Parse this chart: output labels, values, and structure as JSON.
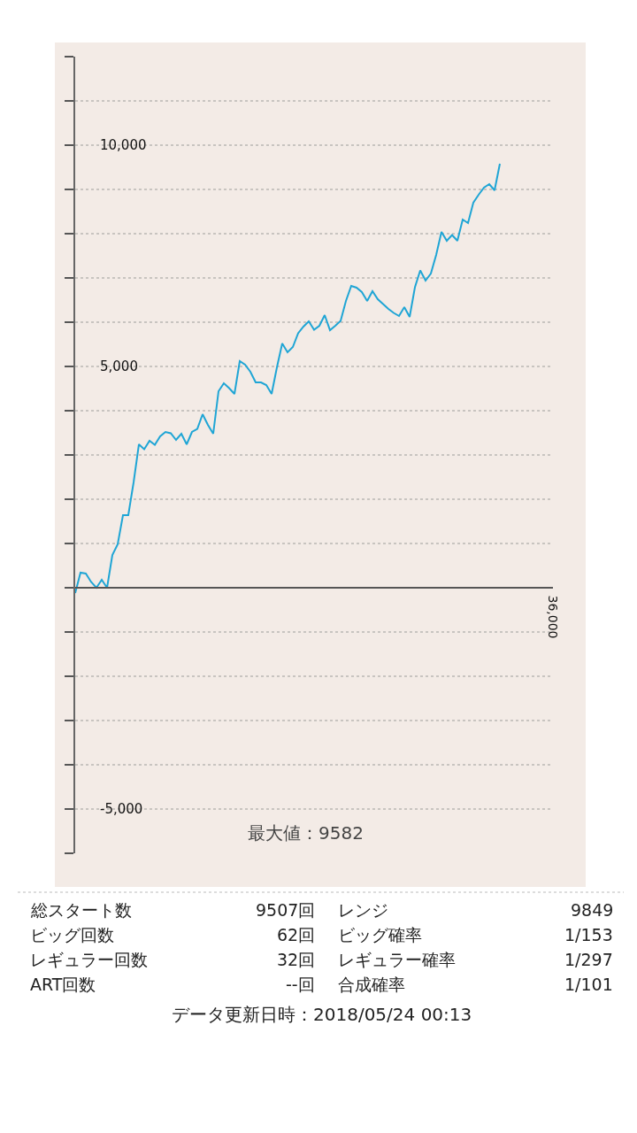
{
  "chart_data": {
    "type": "line",
    "categories": [
      null,
      null,
      null,
      null,
      null,
      null,
      null,
      null,
      null,
      null,
      null,
      null,
      null,
      null,
      null,
      null,
      null,
      null,
      null,
      null,
      null,
      null,
      null,
      null,
      null,
      null,
      null,
      null,
      null,
      null,
      null,
      null,
      null,
      null,
      null,
      null,
      null,
      null,
      null,
      null,
      null,
      null,
      null,
      null,
      null,
      null,
      null,
      null,
      null,
      null,
      null,
      null,
      null,
      null,
      null,
      null,
      null,
      null,
      null,
      null,
      null,
      null,
      null,
      null,
      null,
      null,
      null,
      null,
      null,
      null,
      null,
      null,
      null,
      null,
      null,
      null,
      null,
      null,
      null,
      null,
      null,
      null,
      null,
      null,
      null,
      null,
      null,
      null,
      null,
      null,
      null
    ],
    "series": [
      {
        "color": "#1fa5d5",
        "values": [
          -120,
          340,
          320,
          130,
          0,
          180,
          0,
          740,
          980,
          1640,
          1640,
          2380,
          3240,
          3130,
          3320,
          3230,
          3420,
          3520,
          3490,
          3340,
          3480,
          3240,
          3520,
          3590,
          3920,
          3680,
          3480,
          4440,
          4620,
          4510,
          4380,
          5120,
          5040,
          4880,
          4640,
          4640,
          4580,
          4380,
          4980,
          5520,
          5320,
          5440,
          5750,
          5900,
          6020,
          5830,
          5920,
          6160,
          5820,
          5920,
          6030,
          6480,
          6820,
          6780,
          6680,
          6480,
          6700,
          6520,
          6410,
          6300,
          6210,
          6140,
          6340,
          6120,
          6790,
          7170,
          6940,
          7100,
          7520,
          8040,
          7840,
          7970,
          7840,
          8320,
          8240,
          8700,
          8880,
          9040,
          9120,
          8980,
          9580,
          null,
          null,
          null,
          null,
          null,
          null,
          null,
          null,
          null,
          null
        ]
      }
    ],
    "ylim": [
      -6000,
      12000
    ],
    "yticks": [
      {
        "value": -6000,
        "label": null
      },
      {
        "value": -5000,
        "label": "-5,000"
      },
      {
        "value": -4000,
        "label": null
      },
      {
        "value": -3000,
        "label": null
      },
      {
        "value": -2000,
        "label": null
      },
      {
        "value": -1000,
        "label": null
      },
      {
        "value": 0,
        "label": null
      },
      {
        "value": 1000,
        "label": null
      },
      {
        "value": 2000,
        "label": null
      },
      {
        "value": 3000,
        "label": null
      },
      {
        "value": 4000,
        "label": null
      },
      {
        "value": 5000,
        "label": "5,000"
      },
      {
        "value": 6000,
        "label": null
      },
      {
        "value": 7000,
        "label": null
      },
      {
        "value": 8000,
        "label": null
      },
      {
        "value": 9000,
        "label": null
      },
      {
        "value": 10000,
        "label": "10,000"
      },
      {
        "value": 11000,
        "label": null
      },
      {
        "value": 12000,
        "label": null
      }
    ],
    "grid": "y",
    "marker": "none",
    "line_style": "solid",
    "annotations": [
      "36,000",
      "最大値：9582",
      "総スタート数",
      "9507回",
      "レンジ",
      "9849",
      "ビッグ回数",
      "62回",
      "ビッグ確率",
      "1/153",
      "レギュラー回数",
      "32回",
      "レギュラー確率",
      "1/297",
      "ART回数",
      "--回",
      "合成確率",
      "1/101",
      "データ更新日時：2018/05/24 00:13"
    ]
  }
}
